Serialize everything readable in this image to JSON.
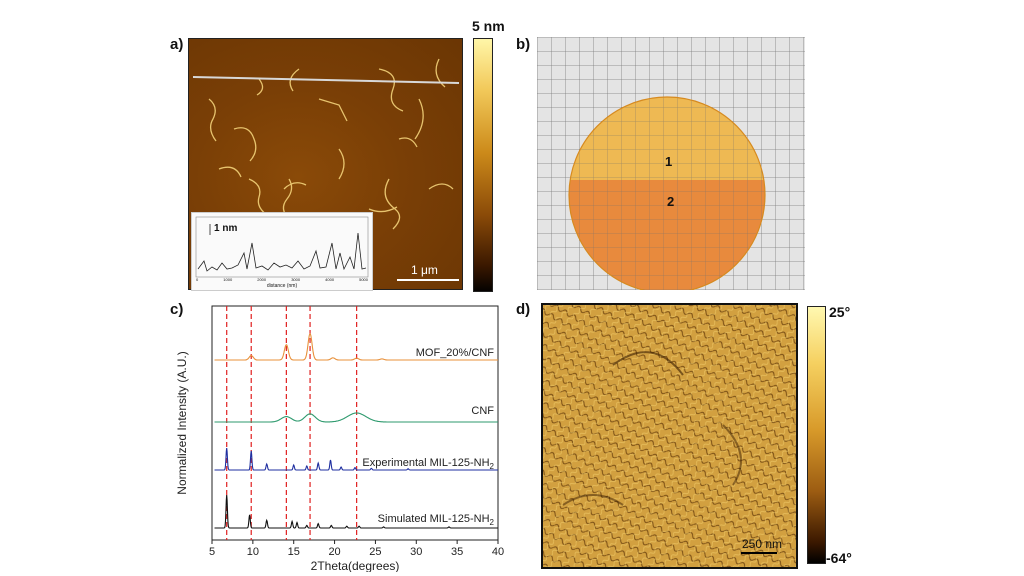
{
  "panel_a": {
    "label": "a)",
    "inset": {
      "scale_label": "1 nm",
      "xlabel": "distance (nm)",
      "ticks": [
        "0",
        "1000",
        "2000",
        "3000",
        "4000",
        "5000"
      ]
    },
    "scale_bar": "1 μm",
    "colorbar_max": "5 nm"
  },
  "panel_b": {
    "label": "b)",
    "region_1": "1",
    "region_2": "2"
  },
  "panel_c": {
    "label": "c)"
  },
  "panel_d": {
    "label": "d)",
    "scale_bar": "250 nm",
    "colorbar_max": "25°",
    "colorbar_min": "-64°"
  },
  "chart_data": {
    "type": "line",
    "xlabel": "2Theta(degrees)",
    "ylabel": "Normalized Intensity (A.U.)",
    "xlim": [
      5,
      40
    ],
    "xticks": [
      5,
      10,
      15,
      20,
      25,
      30,
      35,
      40
    ],
    "reference_lines_x": [
      6.8,
      9.8,
      14.1,
      17.0,
      22.7
    ],
    "series": [
      {
        "name": "MOF_20%/CNF",
        "color": "#e8903a",
        "offset": 3,
        "peaks": [
          [
            9.8,
            0.25
          ],
          [
            14.1,
            0.85
          ],
          [
            17.0,
            1.45
          ],
          [
            19.8,
            0.12
          ],
          [
            22.7,
            0.1
          ],
          [
            25.8,
            0.06
          ]
        ]
      },
      {
        "name": "CNF",
        "color": "#2e9a6e",
        "offset": 2,
        "peaks": [
          [
            14.1,
            0.3
          ],
          [
            17.0,
            0.45
          ],
          [
            22.7,
            0.5
          ]
        ]
      },
      {
        "name": "Experimental MIL-125-NH",
        "subscript": "2",
        "color": "#1f2fa0",
        "offset": 1,
        "peaks": [
          [
            6.8,
            1.1
          ],
          [
            9.8,
            0.95
          ],
          [
            11.7,
            0.3
          ],
          [
            15.0,
            0.25
          ],
          [
            16.6,
            0.2
          ],
          [
            18.0,
            0.35
          ],
          [
            19.5,
            0.5
          ],
          [
            20.8,
            0.15
          ],
          [
            22.5,
            0.12
          ],
          [
            24.5,
            0.08
          ],
          [
            29.0,
            0.06
          ]
        ]
      },
      {
        "name": "Simulated MIL-125-NH",
        "subscript": "2",
        "color": "#111111",
        "offset": 0,
        "peaks": [
          [
            6.8,
            1.5
          ],
          [
            9.6,
            0.6
          ],
          [
            11.7,
            0.35
          ],
          [
            14.8,
            0.3
          ],
          [
            15.4,
            0.25
          ],
          [
            16.6,
            0.12
          ],
          [
            18.0,
            0.2
          ],
          [
            19.6,
            0.12
          ],
          [
            21.5,
            0.08
          ],
          [
            23.0,
            0.08
          ],
          [
            26.0,
            0.05
          ],
          [
            34.0,
            0.05
          ]
        ]
      }
    ]
  }
}
